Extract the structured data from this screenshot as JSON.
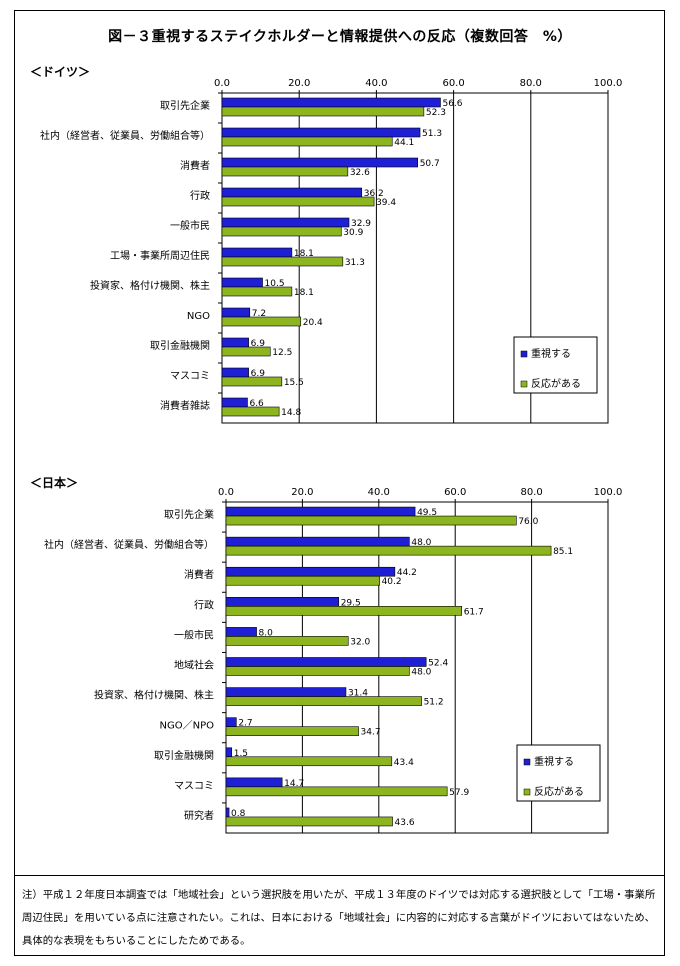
{
  "title": "図－３重視するステイクホルダーと情報提供への反応（複数回答　%）",
  "footnote": "注）平成１２年度日本調査では「地域社会」という選択肢を用いたが、平成１３年度のドイツでは対応する選択肢として「工場・事業所周辺住民」を用いている点に注意されたい。これは、日本における「地域社会」に内容的に対応する言葉がドイツにおいてはないため、具体的な表現をもちいることにしたためである。",
  "colors": {
    "series1": "#1f1fd6",
    "series2": "#8cb51f",
    "plot_bg": "#ffffff",
    "grid": "#000000"
  },
  "chart_data": [
    {
      "type": "bar",
      "orientation": "horizontal",
      "heading": "＜ドイツ＞",
      "categories": [
        "取引先企業",
        "社内（経営者、従業員、労働組合等）",
        "消費者",
        "行政",
        "一般市民",
        "工場・事業所周辺住民",
        "投資家、格付け機関、株主",
        "NGO",
        "取引金融機関",
        "マスコミ",
        "消費者雑誌"
      ],
      "series": [
        {
          "name": "重視する",
          "values": [
            56.6,
            51.3,
            50.7,
            36.2,
            32.9,
            18.1,
            10.5,
            7.2,
            6.9,
            6.9,
            6.6
          ]
        },
        {
          "name": "反応がある",
          "values": [
            52.3,
            44.1,
            32.6,
            39.4,
            30.9,
            31.3,
            18.1,
            20.4,
            12.5,
            15.5,
            14.8
          ]
        }
      ],
      "xlim": [
        0,
        100
      ],
      "xticks": [
        "0.0",
        "20.0",
        "40.0",
        "60.0",
        "80.0",
        "100.0"
      ],
      "grid": true,
      "legend_position": "lower-right"
    },
    {
      "type": "bar",
      "orientation": "horizontal",
      "heading": "＜日本＞",
      "categories": [
        "取引先企業",
        "社内（経営者、従業員、労働組合等）",
        "消費者",
        "行政",
        "一般市民",
        "地域社会",
        "投資家、格付け機関、株主",
        "NGO／NPO",
        "取引金融機関",
        "マスコミ",
        "研究者"
      ],
      "series": [
        {
          "name": "重視する",
          "values": [
            49.5,
            48.0,
            44.2,
            29.5,
            8.0,
            52.4,
            31.4,
            2.7,
            1.5,
            14.7,
            0.8
          ]
        },
        {
          "name": "反応がある",
          "values": [
            76.0,
            85.1,
            40.2,
            61.7,
            32.0,
            48.0,
            51.2,
            34.7,
            43.4,
            57.9,
            43.6
          ]
        }
      ],
      "xlim": [
        0,
        100
      ],
      "xticks": [
        "0.0",
        "20.0",
        "40.0",
        "60.0",
        "80.0",
        "100.0"
      ],
      "grid": true,
      "legend_position": "lower-right"
    }
  ]
}
